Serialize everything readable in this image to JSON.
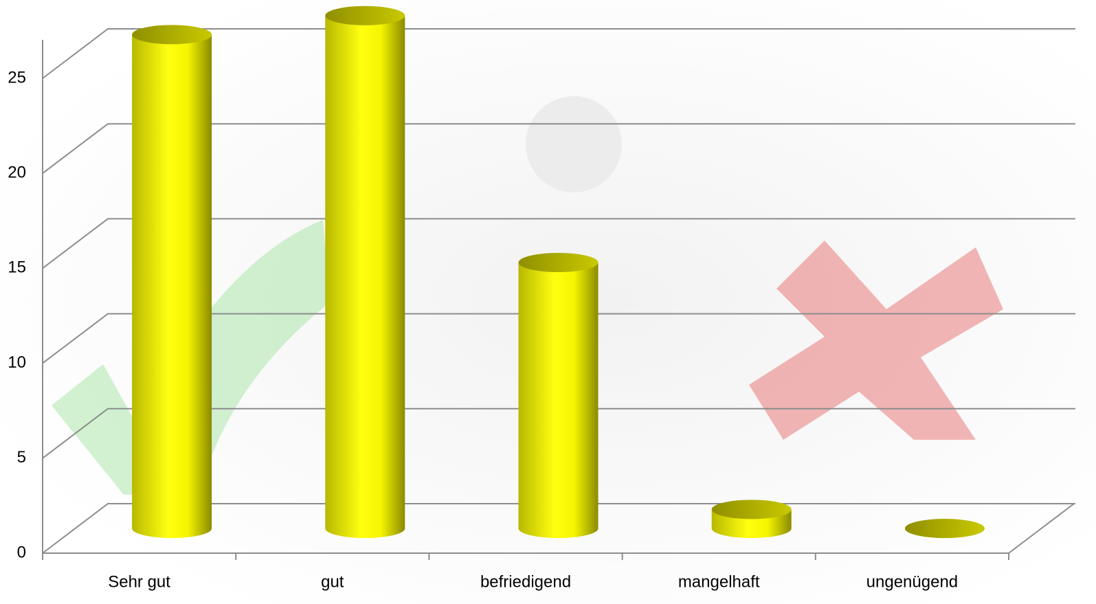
{
  "chart_data": {
    "type": "bar3d",
    "categories": [
      "Sehr gut",
      "gut",
      "befriedigend",
      "mangelhaft",
      "ungenügend"
    ],
    "values": [
      26,
      27,
      14,
      1,
      0
    ],
    "color": "#ffff00",
    "ylim": [
      0,
      25
    ],
    "yticks": [
      0,
      5,
      10,
      15,
      20,
      25
    ],
    "grid": true
  }
}
